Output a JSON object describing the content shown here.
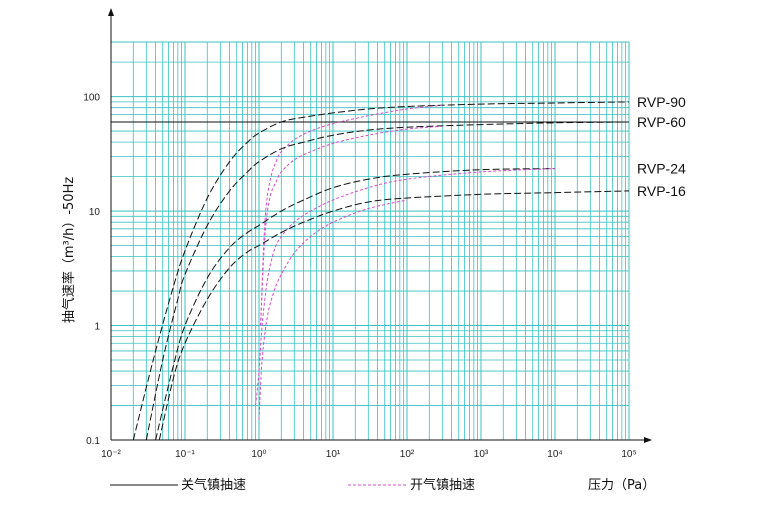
{
  "chart_data": {
    "type": "line",
    "xscale": "log",
    "yscale": "log",
    "xlim": [
      0.01,
      100000
    ],
    "ylim": [
      0.1,
      300
    ],
    "grid": true,
    "ylabel": "抽气速率（m³/h）-50Hz",
    "xlabel": "压力（Pa）",
    "x_tick_labels": [
      "10⁻²",
      "10⁻¹",
      "10⁰",
      "10¹",
      "10²",
      "10³",
      "10⁴",
      "10⁵"
    ],
    "y_tick_labels": [
      "0.1",
      "1",
      "10",
      "100"
    ],
    "legend": {
      "closed": "关气镇抽速",
      "open": "开气镇抽速"
    },
    "colors": {
      "grid": "#39c2c2",
      "closed": "#111111",
      "open": "#d24fc8"
    },
    "series": [
      {
        "name": "RVP-90",
        "closed": {
          "x": [
            0.02,
            0.04,
            0.07,
            0.1,
            0.2,
            0.4,
            0.7,
            1,
            2,
            4,
            10,
            30,
            100,
            1000,
            10000,
            100000
          ],
          "y": [
            0.1,
            0.6,
            2.2,
            4.5,
            13,
            27,
            40,
            48,
            60,
            66,
            72,
            78,
            82,
            86,
            88,
            90
          ]
        },
        "open": {
          "x": [
            1.05,
            1.2,
            1.4,
            1.7,
            2,
            3,
            5,
            10,
            30,
            100,
            300
          ],
          "y": [
            1,
            8,
            18,
            27,
            33,
            42,
            50,
            58,
            68,
            78,
            84
          ]
        }
      },
      {
        "name": "RVP-60",
        "closed": {
          "x": [
            0.03,
            0.05,
            0.08,
            0.1,
            0.2,
            0.4,
            0.7,
            1,
            2,
            4,
            10,
            30,
            100,
            1000,
            10000,
            100000
          ],
          "y": [
            0.1,
            0.5,
            1.7,
            2.8,
            7.5,
            15,
            22,
            27,
            35,
            40,
            46,
            51,
            54,
            57,
            59,
            60
          ]
        },
        "open": {
          "x": [
            1.05,
            1.2,
            1.4,
            1.7,
            2,
            3,
            5,
            10,
            30,
            100,
            300
          ],
          "y": [
            1,
            6,
            13,
            18,
            22,
            28,
            33,
            39,
            46,
            52,
            55
          ]
        }
      },
      {
        "name": "RVP-24",
        "closed": {
          "x": [
            0.04,
            0.07,
            0.1,
            0.2,
            0.4,
            0.7,
            1,
            2,
            4,
            10,
            30,
            100,
            1000,
            10000
          ],
          "y": [
            0.1,
            0.45,
            1,
            2.6,
            4.8,
            6.5,
            7.5,
            10,
            12.5,
            16,
            19,
            21,
            23,
            23.5
          ]
        },
        "open": {
          "x": [
            0.9,
            1.0,
            1.1,
            1.3,
            1.6,
            2,
            3,
            5,
            10,
            30,
            100,
            1000,
            10000
          ],
          "y": [
            0.2,
            0.4,
            1,
            2.5,
            4.5,
            6,
            8,
            10,
            12.5,
            16,
            19,
            22,
            23.5
          ]
        }
      },
      {
        "name": "RVP-16",
        "closed": {
          "x": [
            0.045,
            0.07,
            0.1,
            0.2,
            0.4,
            0.7,
            1,
            2,
            4,
            10,
            30,
            100,
            1000,
            10000,
            100000
          ],
          "y": [
            0.1,
            0.35,
            0.7,
            1.7,
            3.2,
            4.4,
            5,
            6.5,
            8,
            10,
            12,
            13,
            14,
            14.5,
            15
          ]
        },
        "open": {
          "x": [
            1.0,
            1.1,
            1.3,
            1.6,
            2,
            3,
            5,
            10,
            30,
            100
          ],
          "y": [
            0.15,
            0.5,
            1.2,
            2,
            2.8,
            4.3,
            6,
            8,
            10.5,
            12.5
          ]
        }
      }
    ]
  }
}
